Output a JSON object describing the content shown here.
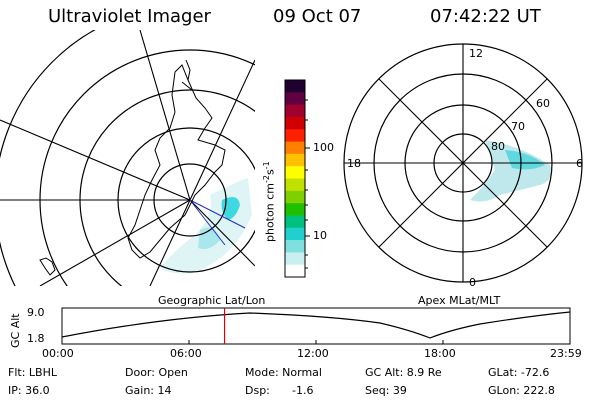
{
  "header": {
    "title": "Ultraviolet Imager",
    "date": "09 Oct 07",
    "time": "07:42:22 UT"
  },
  "geo_panel": {
    "label": "Geographic Lat/Lon"
  },
  "apex_panel": {
    "label": "Apex MLat/MLT",
    "mlt_labels": {
      "top": "12",
      "left": "18",
      "right": "6",
      "bottom": "0"
    },
    "lat_labels": [
      "60",
      "70",
      "80"
    ]
  },
  "colorbar": {
    "unit_label": "photon cm",
    "unit_exp1": "-2",
    "unit_mid": "s",
    "unit_exp2": "-1",
    "tick_labels": [
      "100",
      "10"
    ],
    "colors": [
      "#ffffff",
      "#c8f0f0",
      "#80e0e0",
      "#20d0d0",
      "#00c080",
      "#20c000",
      "#80d000",
      "#c0e000",
      "#ffff00",
      "#ffc000",
      "#ff8000",
      "#ff2000",
      "#d00000",
      "#a00030",
      "#600040",
      "#200030"
    ]
  },
  "altitude_strip": {
    "ylabel": "GC Alt",
    "ytick_top": "9.0",
    "ytick_bottom": "1.8",
    "x_ticks": [
      "00:00",
      "06:00",
      "12:00",
      "18:00",
      "23:59"
    ],
    "current_time_fraction": 0.32,
    "marker_color": "#e00000"
  },
  "status": {
    "row1": {
      "flt": "Flt: LBHL",
      "door": "Door: Open",
      "mode": "Mode: Normal",
      "gcalt": "GC Alt: 8.9 Re",
      "glat": "GLat: -72.6"
    },
    "row2": {
      "ip": "IP: 36.0",
      "gain": "Gain: 14",
      "dsp": "Dsp:",
      "dsp_val": "-1.6",
      "seq": "Seq: 39",
      "glon": "GLon: 222.8"
    }
  }
}
